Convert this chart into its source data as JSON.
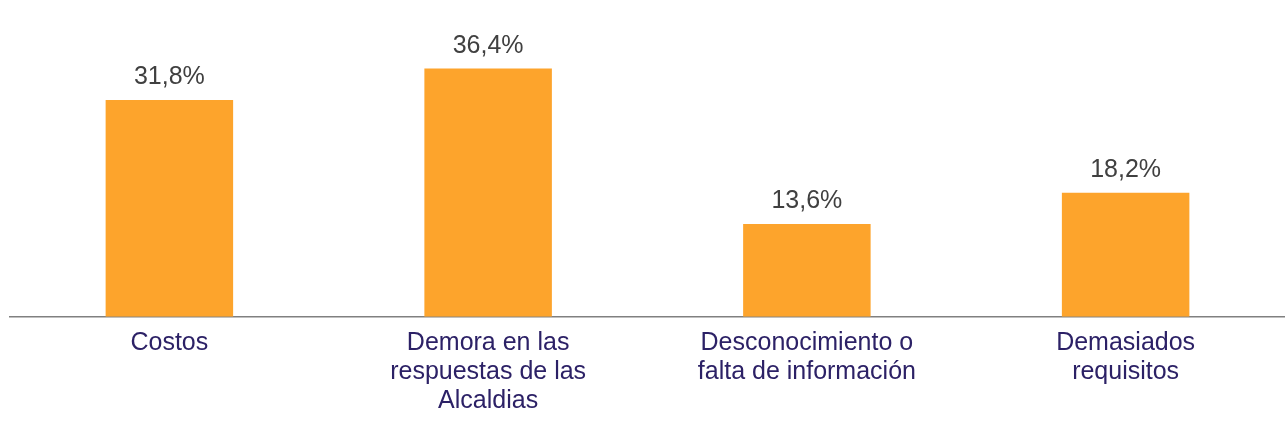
{
  "chart_data": {
    "type": "bar",
    "categories": [
      "Costos",
      "Demora en las respuestas de las Alcaldias",
      "Desconocimiento o falta de información",
      "Demasiados requisitos"
    ],
    "values": [
      31.8,
      36.4,
      13.6,
      18.2
    ],
    "value_labels": [
      "31,8%",
      "36,4%",
      "13,6%",
      "18,2%"
    ],
    "color": "#fda42c",
    "grid": false,
    "legend": false
  }
}
